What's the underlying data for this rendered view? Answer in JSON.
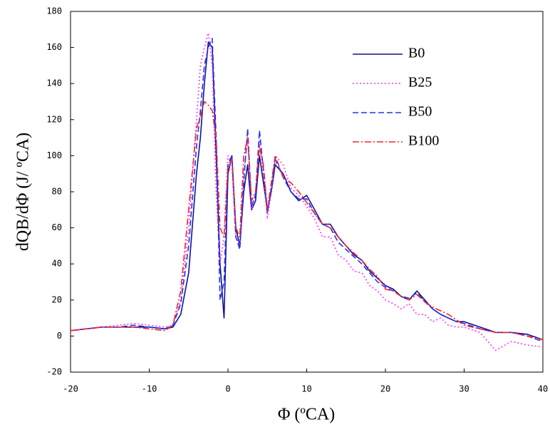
{
  "chart_data": {
    "type": "line",
    "x_label": "Φ (ºCA)",
    "y_label": "dQB/dΦ (J/ ºCA)",
    "x": [
      -20,
      -18,
      -16,
      -14,
      -12,
      -10,
      -8,
      -7,
      -6,
      -5,
      -4,
      -3.5,
      -3,
      -2.5,
      -2,
      -1.5,
      -1,
      -0.5,
      0,
      0.5,
      1,
      1.5,
      2,
      2.5,
      3,
      3.5,
      4,
      4.5,
      5,
      5.5,
      6,
      7,
      8,
      9,
      10,
      11,
      12,
      13,
      14,
      15,
      16,
      17,
      18,
      19,
      20,
      21,
      22,
      23,
      24,
      25,
      26,
      27,
      28,
      29,
      30,
      32,
      34,
      36,
      38,
      40
    ],
    "series": [
      {
        "name": "B0",
        "color": "#10109a",
        "style": "solid",
        "values": [
          3,
          4,
          5,
          5,
          5,
          5,
          4,
          5,
          12,
          35,
          90,
          110,
          140,
          163,
          160,
          100,
          40,
          10,
          90,
          100,
          60,
          50,
          80,
          95,
          70,
          75,
          100,
          85,
          70,
          80,
          95,
          90,
          80,
          75,
          78,
          70,
          62,
          62,
          55,
          50,
          45,
          42,
          36,
          32,
          28,
          26,
          22,
          20,
          25,
          20,
          15,
          12,
          10,
          8,
          8,
          5,
          2,
          2,
          1,
          -2
        ]
      },
      {
        "name": "B25",
        "color": "#ff33ff",
        "style": "dotted",
        "values": [
          3,
          4,
          5,
          6,
          7,
          6,
          5,
          6,
          20,
          60,
          120,
          150,
          160,
          168,
          150,
          80,
          40,
          55,
          100,
          95,
          55,
          50,
          90,
          110,
          70,
          80,
          108,
          90,
          65,
          80,
          100,
          95,
          82,
          78,
          72,
          65,
          55,
          55,
          45,
          42,
          36,
          35,
          28,
          25,
          20,
          18,
          15,
          18,
          12,
          12,
          8,
          10,
          6,
          5,
          5,
          2,
          -8,
          -3,
          -5,
          -6
        ]
      },
      {
        "name": "B50",
        "color": "#2233ee",
        "style": "dashed",
        "values": [
          3,
          4,
          5,
          5,
          6,
          5,
          4,
          6,
          18,
          50,
          105,
          125,
          150,
          160,
          165,
          110,
          20,
          30,
          95,
          100,
          55,
          48,
          85,
          115,
          72,
          78,
          114,
          92,
          68,
          82,
          98,
          88,
          80,
          76,
          76,
          68,
          62,
          60,
          52,
          48,
          44,
          40,
          35,
          30,
          27,
          25,
          22,
          21,
          24,
          19,
          15,
          12,
          10,
          8,
          7,
          4,
          2,
          2,
          0,
          -3
        ]
      },
      {
        "name": "B100",
        "color": "#ff2222",
        "style": "dashdot",
        "values": [
          3,
          4,
          5,
          5,
          5,
          4,
          3,
          6,
          25,
          70,
          115,
          122,
          130,
          128,
          125,
          110,
          60,
          55,
          95,
          98,
          60,
          55,
          100,
          110,
          75,
          80,
          105,
          95,
          70,
          85,
          100,
          88,
          85,
          80,
          74,
          68,
          62,
          60,
          55,
          50,
          46,
          42,
          37,
          33,
          26,
          25,
          22,
          20,
          23,
          19,
          16,
          14,
          12,
          9,
          6,
          4,
          2,
          2,
          0,
          -2
        ]
      }
    ],
    "xlim": [
      -20,
      40
    ],
    "xticks": [
      -20,
      -10,
      0,
      10,
      20,
      30,
      40
    ],
    "ylim": [
      -20,
      180
    ],
    "yticks": [
      -20,
      0,
      20,
      40,
      60,
      80,
      100,
      120,
      140,
      160,
      180
    ],
    "legend": "upper right",
    "grid": false
  }
}
